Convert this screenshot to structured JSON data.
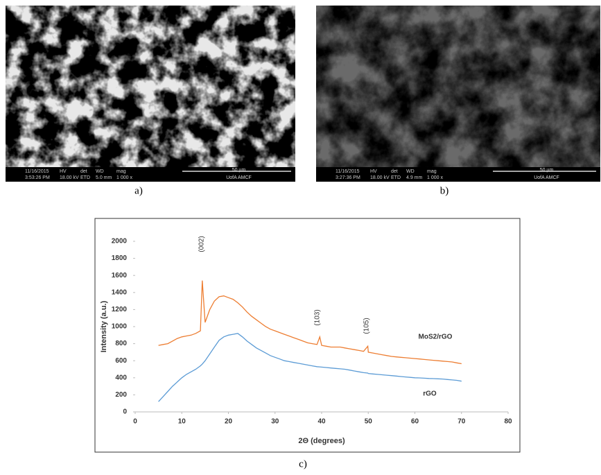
{
  "panels": [
    {
      "caption": "a)",
      "info": [
        "11/16/2015",
        "3:53:26 PM",
        "HV",
        "18.00 kV",
        "det",
        "ETD",
        "WD",
        "5.0 mm",
        "mag",
        "1 000 x"
      ],
      "scale": "50 µm",
      "lab": "UofA AMCF"
    },
    {
      "caption": "b)",
      "info": [
        "11/16/2015",
        "3:27:36 PM",
        "HV",
        "18.00 kV",
        "det",
        "ETD",
        "WD",
        "4.9 mm",
        "mag",
        "1 000 x"
      ],
      "scale": "50 µm",
      "lab": "UofA AMCF"
    }
  ],
  "caption": "c)",
  "chart_data": {
    "type": "line",
    "xlabel": "2Θ (degrees)",
    "ylabel": "Intensity (a.u.)",
    "annotations": [
      "(002)",
      "(103)",
      "(105)"
    ],
    "x": [
      5,
      6,
      7,
      8,
      9,
      10,
      11,
      12,
      13,
      14,
      14.4,
      15,
      16,
      17,
      18,
      19,
      20,
      21,
      22,
      23,
      24,
      25,
      26,
      27,
      28,
      29,
      30,
      31,
      32,
      33,
      34,
      35,
      36,
      37,
      38,
      39,
      39.6,
      40,
      41,
      42,
      43,
      44,
      45,
      46,
      47,
      48,
      49,
      49.9,
      50,
      51,
      52,
      53,
      54,
      55,
      56,
      57,
      58,
      59,
      60,
      61,
      62,
      63,
      64,
      65,
      66,
      67,
      68,
      69,
      70
    ],
    "series": [
      {
        "name": "MoS2/rGO",
        "color": "#ed7d31",
        "values": [
          780,
          790,
          800,
          830,
          860,
          880,
          890,
          900,
          920,
          950,
          1540,
          1050,
          1200,
          1300,
          1350,
          1360,
          1340,
          1320,
          1280,
          1230,
          1170,
          1120,
          1080,
          1040,
          1000,
          970,
          950,
          930,
          910,
          890,
          870,
          850,
          830,
          810,
          800,
          790,
          880,
          780,
          770,
          760,
          760,
          760,
          750,
          740,
          730,
          720,
          710,
          770,
          700,
          690,
          680,
          670,
          660,
          650,
          645,
          640,
          635,
          630,
          625,
          620,
          615,
          610,
          605,
          600,
          595,
          590,
          585,
          575,
          565
        ]
      },
      {
        "name": "rGO",
        "color": "#5b9bd5",
        "values": [
          120,
          180,
          240,
          300,
          350,
          400,
          440,
          470,
          500,
          540,
          560,
          600,
          680,
          760,
          840,
          880,
          900,
          910,
          920,
          880,
          830,
          790,
          750,
          720,
          690,
          660,
          640,
          620,
          600,
          590,
          580,
          570,
          560,
          550,
          540,
          530,
          528,
          525,
          520,
          515,
          510,
          505,
          500,
          490,
          480,
          470,
          460,
          455,
          450,
          445,
          440,
          435,
          430,
          425,
          420,
          415,
          410,
          405,
          400,
          398,
          395,
          392,
          390,
          388,
          385,
          380,
          375,
          370,
          360
        ]
      }
    ],
    "xlim": [
      0,
      80
    ],
    "xticks": [
      0,
      10,
      20,
      30,
      40,
      50,
      60,
      70,
      80
    ],
    "ylim": [
      0,
      2000
    ],
    "yticks": [
      0,
      200,
      400,
      600,
      800,
      1000,
      1200,
      1400,
      1600,
      1800,
      2000
    ]
  }
}
